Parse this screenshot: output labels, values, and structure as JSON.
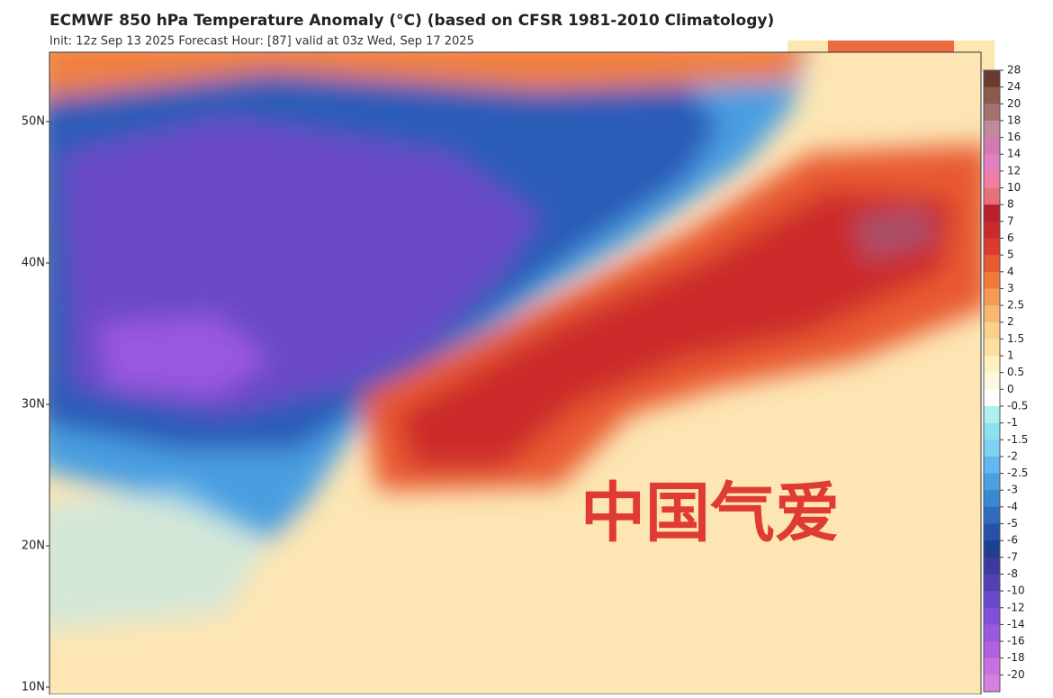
{
  "header": {
    "title": "ECMWF 850 hPa Temperature Anomaly (°C) (based on CFSR 1981-2010 Climatology)",
    "subtitle": "Init: 12z Sep 13 2025   Forecast Hour: [87]   valid at 03z Wed, Sep 17 2025"
  },
  "map": {
    "lat_labels": [
      "50N",
      "40N",
      "30N",
      "20N",
      "10N"
    ],
    "watermark": "中国气爱"
  },
  "colorbar": {
    "ticks": [
      28,
      24,
      20,
      18,
      16,
      14,
      12,
      10,
      8,
      7,
      6,
      5,
      4,
      3,
      2.5,
      2,
      1.5,
      1,
      0.5,
      0,
      -0.5,
      -1,
      -1.5,
      -2,
      -2.5,
      -3,
      -4,
      -5,
      -6,
      -7,
      -8,
      -10,
      -12,
      -14,
      -16,
      -18,
      -20
    ],
    "colors": [
      "#6b3a2e",
      "#8b5a4a",
      "#a57070",
      "#c08a9a",
      "#d27ab0",
      "#e47fc2",
      "#f07fa8",
      "#e8707a",
      "#b8202a",
      "#cc2a2a",
      "#dd3a2e",
      "#e85a30",
      "#f07a3a",
      "#f59a55",
      "#f8b86f",
      "#fbd08a",
      "#fde0a0",
      "#fff0c0",
      "#fff8e0",
      "#ffffff",
      "#aef0f0",
      "#8ee0f0",
      "#7ed0f0",
      "#60b8ec",
      "#4aa0e0",
      "#3a88d0",
      "#2f6cc0",
      "#2552a8",
      "#1f3f90",
      "#3a3aa0",
      "#5040b0",
      "#6848c8",
      "#8050d8",
      "#9a58e0",
      "#b060e0",
      "#c870e0",
      "#d880e0"
    ]
  }
}
